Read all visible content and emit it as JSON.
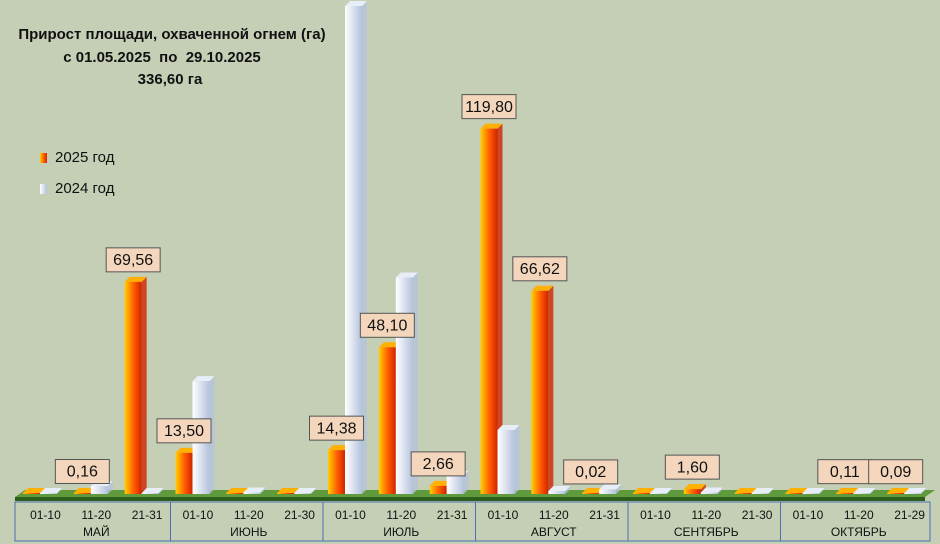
{
  "chart_data": {
    "type": "bar3d",
    "title": "Прирост площади, охваченной огнем (га)",
    "subtitle": "с 01.05.2025  по  29.10.2025",
    "total": "336,60 га",
    "categories": [
      "01-10",
      "11-20",
      "21-31",
      "01-10",
      "11-20",
      "21-30",
      "01-10",
      "11-20",
      "21-31",
      "01-10",
      "11-20",
      "21-31",
      "01-10",
      "11-20",
      "21-30",
      "01-10",
      "11-20",
      "21-29"
    ],
    "groups": [
      "МАЙ",
      "ИЮНЬ",
      "ИЮЛЬ",
      "АВГУСТ",
      "СЕНТЯБРЬ",
      "ОКТЯБРЬ"
    ],
    "series": [
      {
        "name": "2025 год",
        "color": "#d02400",
        "values": [
          0,
          0.16,
          69.56,
          13.5,
          0,
          0,
          14.38,
          48.1,
          2.66,
          119.8,
          66.62,
          0.02,
          0,
          1.6,
          0,
          0,
          0.11,
          0.09
        ],
        "value_labels": [
          null,
          "0,16",
          "69,56",
          "13,50",
          null,
          null,
          "14,38",
          "48,10",
          "2,66",
          "119,80",
          "66,62",
          "0,02",
          null,
          "1,60",
          null,
          null,
          "0,11",
          "0,09"
        ]
      },
      {
        "name": "2024 год",
        "color": "#b4c2dc",
        "values": [
          0,
          2.6,
          0,
          37,
          0.5,
          0,
          160,
          71,
          6,
          21,
          1,
          1.5,
          0,
          0.5,
          0,
          0,
          0,
          0
        ]
      }
    ]
  }
}
